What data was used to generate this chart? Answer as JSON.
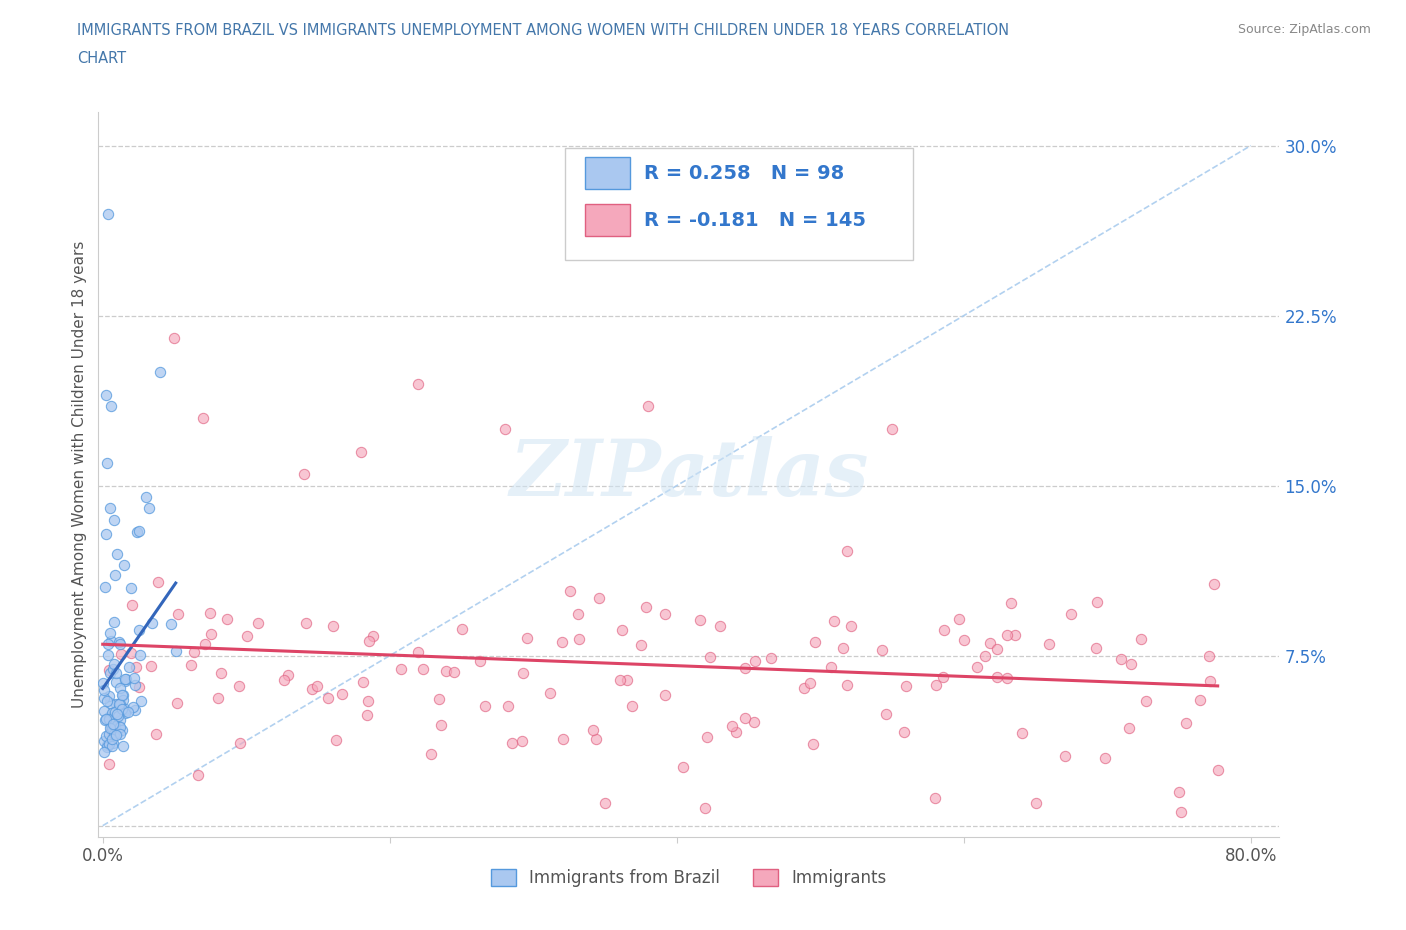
{
  "title_line1": "IMMIGRANTS FROM BRAZIL VS IMMIGRANTS UNEMPLOYMENT AMONG WOMEN WITH CHILDREN UNDER 18 YEARS CORRELATION",
  "title_line2": "CHART",
  "source_text": "Source: ZipAtlas.com",
  "ylabel": "Unemployment Among Women with Children Under 18 years",
  "xlim": [
    -0.003,
    0.82
  ],
  "ylim": [
    -0.005,
    0.315
  ],
  "xtick_vals": [
    0.0,
    0.2,
    0.4,
    0.6,
    0.8
  ],
  "xtick_labels": [
    "0.0%",
    "",
    "",
    "",
    "80.0%"
  ],
  "ytick_vals": [
    0.0,
    0.075,
    0.15,
    0.225,
    0.3
  ],
  "ytick_labels": [
    "",
    "7.5%",
    "15.0%",
    "22.5%",
    "30.0%"
  ],
  "watermark": "ZIPatlas",
  "legend_label1": "Immigrants from Brazil",
  "legend_label2": "Immigrants",
  "R1": 0.258,
  "N1": 98,
  "R2": -0.181,
  "N2": 145,
  "color1": "#aac8f0",
  "color2": "#f5a8bc",
  "edge_color1": "#5599dd",
  "edge_color2": "#e06080",
  "reg_color1": "#3366bb",
  "reg_color2": "#dd4466",
  "diag_color": "#aaccee",
  "title_color": "#4477aa",
  "ytick_color": "#3377cc",
  "source_color": "#888888",
  "xlabel_color": "#555555",
  "grid_color": "#cccccc",
  "bg_color": "#ffffff",
  "legend_text_color": "#3377cc",
  "bottom_legend_color": "#555555"
}
